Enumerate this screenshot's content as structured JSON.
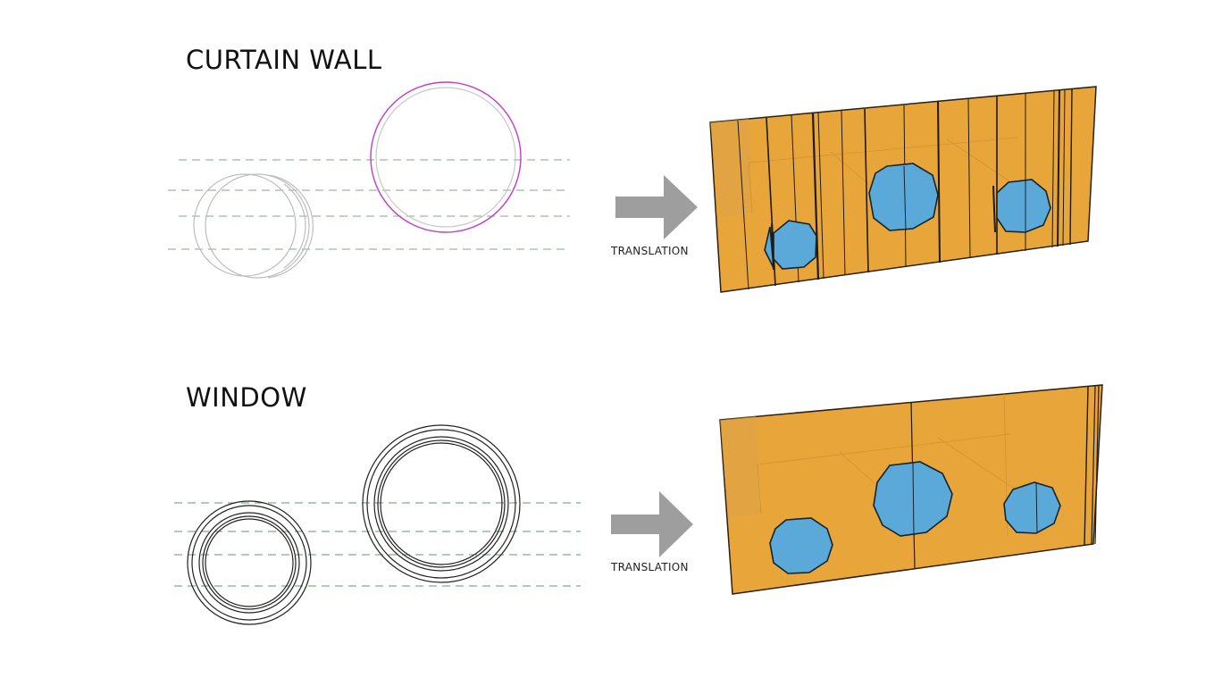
{
  "sections": {
    "curtain_wall": {
      "title": "CURTAIN WALL",
      "arrow_label": "TRANSLATION"
    },
    "window": {
      "title": "WINDOW",
      "arrow_label": "TRANSLATION"
    }
  },
  "colors": {
    "wall_fill": "#E8A63A",
    "opening_fill": "#5AA9D8",
    "arrow": "#9E9E9E",
    "guide_dash": "#5E9A6E",
    "selection": "#C23CC8",
    "plan_line_light": "#BDBDBD",
    "plan_line_dark": "#222222"
  }
}
